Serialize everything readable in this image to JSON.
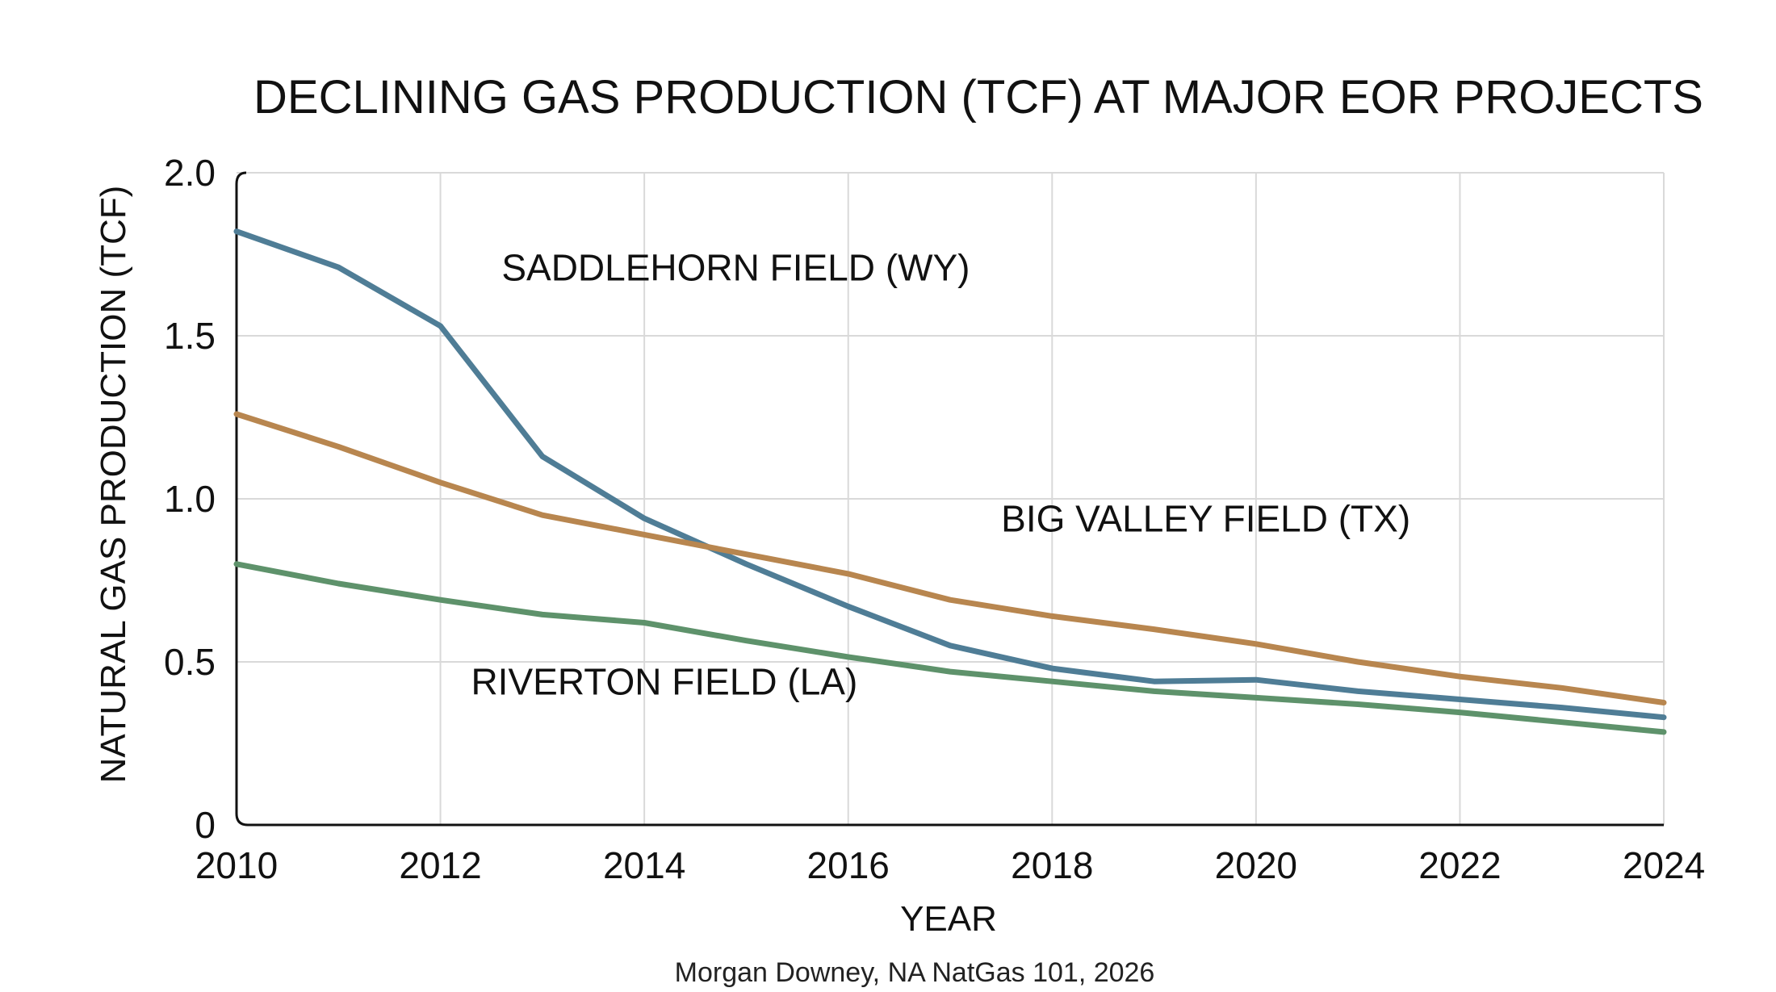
{
  "chart_data": {
    "type": "line",
    "title": "DECLINING GAS PRODUCTION (TCF) AT MAJOR EOR PROJECTS",
    "xlabel": "YEAR",
    "ylabel": "NATURAL GAS PRODUCTION (TCF)",
    "source": "Morgan Downey, NA NatGas 101, 2026",
    "xlim": [
      2010,
      2024
    ],
    "ylim": [
      0,
      2.0
    ],
    "x_ticks": [
      "2010",
      "2012",
      "2014",
      "2016",
      "2018",
      "2020",
      "2022",
      "2024"
    ],
    "y_ticks": [
      "0",
      "0.5",
      "1.0",
      "1.5",
      "2.0"
    ],
    "grid": true,
    "x": [
      2010,
      2011,
      2012,
      2013,
      2014,
      2015,
      2016,
      2017,
      2018,
      2019,
      2020,
      2021,
      2022,
      2023,
      2024
    ],
    "series": [
      {
        "name": "SADDLEHORN FIELD (WY)",
        "color": "#4f7d96",
        "values": [
          1.82,
          1.71,
          1.53,
          1.13,
          0.94,
          0.8,
          0.67,
          0.55,
          0.48,
          0.44,
          0.445,
          0.41,
          0.385,
          0.36,
          0.33
        ]
      },
      {
        "name": "BIG VALLEY FIELD (TX)",
        "color": "#b8864f",
        "values": [
          1.26,
          1.16,
          1.05,
          0.95,
          0.89,
          0.83,
          0.77,
          0.69,
          0.64,
          0.6,
          0.555,
          0.5,
          0.455,
          0.42,
          0.375
        ]
      },
      {
        "name": "RIVERTON FIELD (LA)",
        "color": "#5e926b",
        "values": [
          0.8,
          0.74,
          0.69,
          0.645,
          0.62,
          0.565,
          0.515,
          0.47,
          0.44,
          0.41,
          0.39,
          0.37,
          0.345,
          0.315,
          0.285
        ]
      }
    ]
  }
}
